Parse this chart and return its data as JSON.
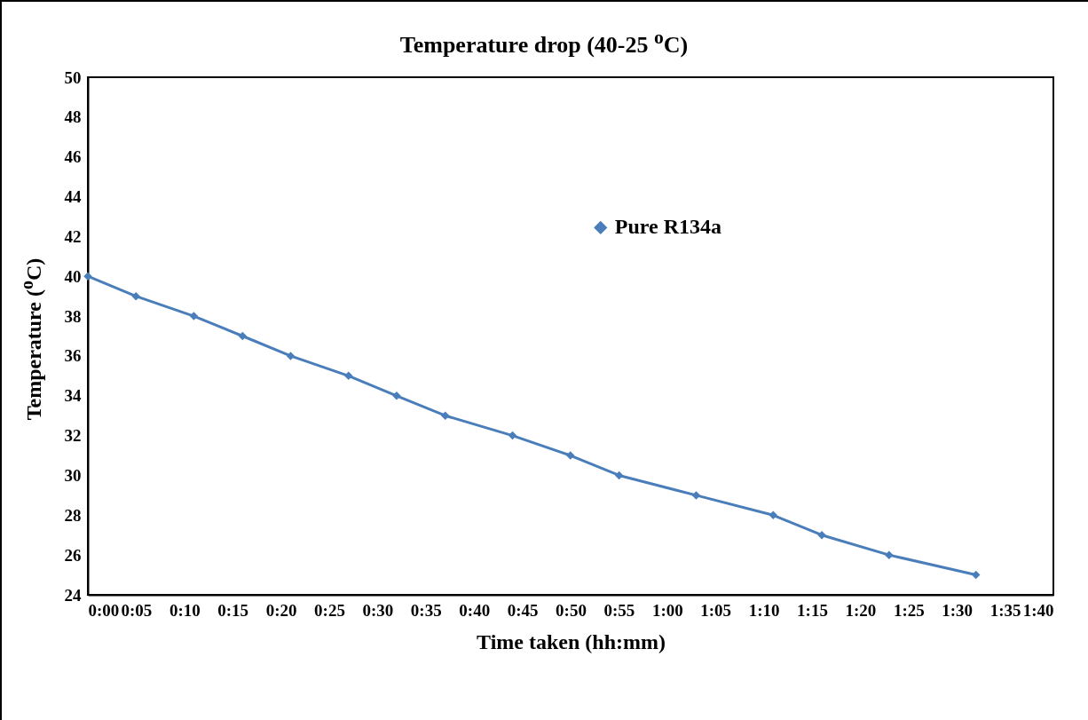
{
  "chart_data": {
    "type": "line",
    "title": "Temperature drop (40-25 $^{o}$C)",
    "xlabel": "Time taken (hh:mm)",
    "ylabel": "Temperature ($^{o}$C)",
    "x": [
      0,
      0.083,
      0.183,
      0.267,
      0.35,
      0.45,
      0.533,
      0.617,
      0.733,
      0.833,
      0.917,
      1.05,
      1.183,
      1.267,
      1.383,
      1.533
    ],
    "series": [
      {
        "name": "Pure R134a",
        "color": "#4a7ebb",
        "values": [
          40,
          39,
          38,
          37,
          36,
          35,
          34,
          33,
          32,
          31,
          30,
          29,
          28,
          27,
          26,
          25
        ]
      }
    ],
    "xlim": [
      0,
      1.6667
    ],
    "xticks": [
      {
        "value": 0,
        "label": "0:00"
      },
      {
        "value": 0.0833,
        "label": "0:05"
      },
      {
        "value": 0.1667,
        "label": "0:10"
      },
      {
        "value": 0.25,
        "label": "0:15"
      },
      {
        "value": 0.3333,
        "label": "0:20"
      },
      {
        "value": 0.4167,
        "label": "0:25"
      },
      {
        "value": 0.5,
        "label": "0:30"
      },
      {
        "value": 0.5833,
        "label": "0:35"
      },
      {
        "value": 0.6667,
        "label": "0:40"
      },
      {
        "value": 0.75,
        "label": "0:45"
      },
      {
        "value": 0.8333,
        "label": "0:50"
      },
      {
        "value": 0.9167,
        "label": "0:55"
      },
      {
        "value": 1,
        "label": "1:00"
      },
      {
        "value": 1.0833,
        "label": "1:05"
      },
      {
        "value": 1.1667,
        "label": "1:10"
      },
      {
        "value": 1.25,
        "label": "1:15"
      },
      {
        "value": 1.3333,
        "label": "1:20"
      },
      {
        "value": 1.4167,
        "label": "1:25"
      },
      {
        "value": 1.5,
        "label": "1:30"
      },
      {
        "value": 1.5833,
        "label": "1:35"
      },
      {
        "value": 1.6667,
        "label": "1:40"
      }
    ],
    "ylim": [
      24,
      50
    ],
    "yticks": [
      24,
      26,
      28,
      30,
      32,
      34,
      36,
      38,
      40,
      42,
      44,
      46,
      48,
      50
    ],
    "grid": false,
    "legend": "top right",
    "marker": "diamond",
    "line_style": "solid"
  }
}
